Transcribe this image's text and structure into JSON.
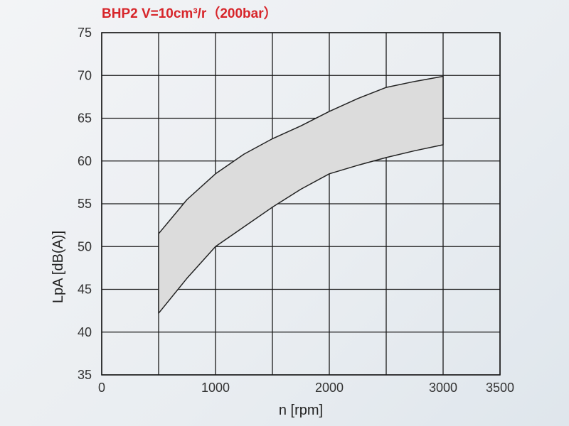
{
  "chart_data": {
    "type": "area",
    "title": "BHP2 V=10cm³/r（200bar）",
    "xlabel": "n [rpm]",
    "ylabel": "LpA [dB(A)]",
    "xlim": [
      0,
      3500
    ],
    "ylim": [
      35,
      75
    ],
    "xticks": [
      0,
      1000,
      2000,
      3000,
      3500
    ],
    "yticks": [
      35,
      40,
      45,
      50,
      55,
      60,
      65,
      70,
      75
    ],
    "x_tick_labels": [
      "0",
      "1000",
      "2000",
      "3000",
      "3500"
    ],
    "y_tick_labels": [
      "35",
      "40",
      "45",
      "50",
      "55",
      "60",
      "65",
      "70",
      "75"
    ],
    "grid": true,
    "band": {
      "upper": {
        "x": [
          500,
          750,
          1000,
          1250,
          1500,
          1750,
          2000,
          2250,
          2500,
          2750,
          3000
        ],
        "y": [
          51.5,
          55.5,
          58.5,
          60.8,
          62.6,
          64.1,
          65.8,
          67.3,
          68.6,
          69.3,
          69.9
        ]
      },
      "lower": {
        "x": [
          500,
          750,
          1000,
          1250,
          1500,
          1750,
          2000,
          2250,
          2500,
          2750,
          3000
        ],
        "y": [
          42.2,
          46.3,
          50.0,
          52.3,
          54.6,
          56.7,
          58.5,
          59.5,
          60.4,
          61.2,
          61.9
        ]
      }
    },
    "colors": {
      "fill": "#dcdcdc",
      "line": "#222222",
      "grid": "#1a1a1a",
      "title": "#d7252a"
    }
  }
}
